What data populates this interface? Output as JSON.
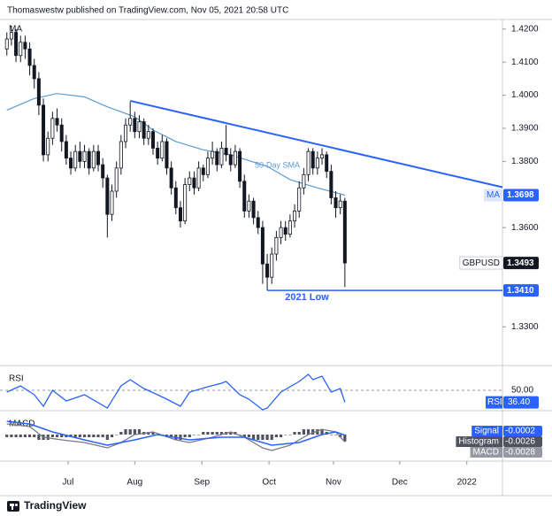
{
  "header": "Thomaswestw published on TradingView.com, Nov 05, 2021 20:58 UTC",
  "footer": "TradingView",
  "chart_data": {
    "type": "candlestick",
    "indicator_label": "MA",
    "xlim": [
      -1.5,
      108.5
    ],
    "ylim": [
      1.3183,
      1.4229
    ],
    "grid": false,
    "xticks": [
      {
        "value": 13.4,
        "label": "Jul"
      },
      {
        "value": 28,
        "label": "Aug"
      },
      {
        "value": 42.7,
        "label": "Sep"
      },
      {
        "value": 57.4,
        "label": "Oct"
      },
      {
        "value": 71.5,
        "label": "Nov"
      },
      {
        "value": 86,
        "label": "Dec"
      },
      {
        "value": 100.7,
        "label": "2022"
      }
    ],
    "yticks": [
      {
        "value": 1.42,
        "label": "1.4200"
      },
      {
        "value": 1.41,
        "label": "1.4100"
      },
      {
        "value": 1.4,
        "label": "1.4000"
      },
      {
        "value": 1.39,
        "label": "1.3900"
      },
      {
        "value": 1.38,
        "label": "1.3800"
      },
      {
        "value": 1.36,
        "label": "1.3600"
      },
      {
        "value": 1.33,
        "label": "1.3300"
      }
    ],
    "up_color": "#ffffff",
    "down_color": "#131722",
    "ohlc": [
      [
        1.414,
        1.419,
        1.412,
        1.417
      ],
      [
        1.417,
        1.421,
        1.415,
        1.419
      ],
      [
        1.419,
        1.42,
        1.41,
        1.412
      ],
      [
        1.412,
        1.418,
        1.41,
        1.416
      ],
      [
        1.416,
        1.418,
        1.411,
        1.414
      ],
      [
        1.414,
        1.416,
        1.406,
        1.409
      ],
      [
        1.409,
        1.411,
        1.402,
        1.405
      ],
      [
        1.405,
        1.407,
        1.394,
        1.397
      ],
      [
        1.397,
        1.399,
        1.38,
        1.382
      ],
      [
        1.382,
        1.389,
        1.38,
        1.387
      ],
      [
        1.387,
        1.395,
        1.385,
        1.393
      ],
      [
        1.393,
        1.396,
        1.389,
        1.391
      ],
      [
        1.391,
        1.393,
        1.383,
        1.386
      ],
      [
        1.386,
        1.388,
        1.379,
        1.381
      ],
      [
        1.381,
        1.383,
        1.376,
        1.378
      ],
      [
        1.378,
        1.385,
        1.377,
        1.383
      ],
      [
        1.383,
        1.386,
        1.378,
        1.38
      ],
      [
        1.38,
        1.385,
        1.378,
        1.383
      ],
      [
        1.383,
        1.384,
        1.376,
        1.378
      ],
      [
        1.378,
        1.385,
        1.377,
        1.383
      ],
      [
        1.383,
        1.385,
        1.377,
        1.379
      ],
      [
        1.379,
        1.381,
        1.372,
        1.375
      ],
      [
        1.375,
        1.376,
        1.357,
        1.364
      ],
      [
        1.364,
        1.373,
        1.362,
        1.371
      ],
      [
        1.371,
        1.38,
        1.369,
        1.378
      ],
      [
        1.378,
        1.388,
        1.376,
        1.386
      ],
      [
        1.386,
        1.393,
        1.384,
        1.391
      ],
      [
        1.391,
        1.398,
        1.389,
        1.393
      ],
      [
        1.393,
        1.395,
        1.387,
        1.389
      ],
      [
        1.389,
        1.394,
        1.387,
        1.392
      ],
      [
        1.392,
        1.393,
        1.385,
        1.387
      ],
      [
        1.387,
        1.391,
        1.385,
        1.389
      ],
      [
        1.389,
        1.39,
        1.382,
        1.384
      ],
      [
        1.384,
        1.386,
        1.379,
        1.381
      ],
      [
        1.381,
        1.388,
        1.38,
        1.386
      ],
      [
        1.386,
        1.387,
        1.376,
        1.378
      ],
      [
        1.378,
        1.38,
        1.37,
        1.372
      ],
      [
        1.372,
        1.374,
        1.364,
        1.366
      ],
      [
        1.366,
        1.368,
        1.36,
        1.362
      ],
      [
        1.362,
        1.375,
        1.361,
        1.373
      ],
      [
        1.373,
        1.377,
        1.371,
        1.375
      ],
      [
        1.375,
        1.377,
        1.37,
        1.372
      ],
      [
        1.372,
        1.38,
        1.371,
        1.378
      ],
      [
        1.378,
        1.379,
        1.374,
        1.376
      ],
      [
        1.376,
        1.383,
        1.375,
        1.381
      ],
      [
        1.381,
        1.386,
        1.379,
        1.383
      ],
      [
        1.383,
        1.384,
        1.377,
        1.379
      ],
      [
        1.379,
        1.386,
        1.378,
        1.384
      ],
      [
        1.384,
        1.391,
        1.38,
        1.382
      ],
      [
        1.382,
        1.384,
        1.377,
        1.379
      ],
      [
        1.379,
        1.385,
        1.378,
        1.383
      ],
      [
        1.383,
        1.384,
        1.372,
        1.374
      ],
      [
        1.374,
        1.376,
        1.363,
        1.365
      ],
      [
        1.365,
        1.37,
        1.363,
        1.368
      ],
      [
        1.368,
        1.369,
        1.361,
        1.363
      ],
      [
        1.363,
        1.365,
        1.358,
        1.36
      ],
      [
        1.36,
        1.362,
        1.343,
        1.349
      ],
      [
        1.349,
        1.352,
        1.341,
        1.345
      ],
      [
        1.345,
        1.354,
        1.343,
        1.352
      ],
      [
        1.352,
        1.359,
        1.35,
        1.357
      ],
      [
        1.357,
        1.362,
        1.355,
        1.36
      ],
      [
        1.36,
        1.362,
        1.356,
        1.358
      ],
      [
        1.358,
        1.364,
        1.357,
        1.362
      ],
      [
        1.362,
        1.367,
        1.36,
        1.365
      ],
      [
        1.365,
        1.374,
        1.363,
        1.372
      ],
      [
        1.372,
        1.378,
        1.37,
        1.376
      ],
      [
        1.376,
        1.384,
        1.374,
        1.383
      ],
      [
        1.383,
        1.384,
        1.376,
        1.378
      ],
      [
        1.378,
        1.383,
        1.376,
        1.381
      ],
      [
        1.381,
        1.384,
        1.379,
        1.382
      ],
      [
        1.382,
        1.383,
        1.375,
        1.377
      ],
      [
        1.377,
        1.379,
        1.367,
        1.369
      ],
      [
        1.369,
        1.371,
        1.363,
        1.366
      ],
      [
        1.366,
        1.37,
        1.364,
        1.368
      ],
      [
        1.368,
        1.369,
        1.342,
        1.3493
      ]
    ],
    "sma": {
      "name": "50-Day SMA",
      "color": "#5b9bd5",
      "x": [
        0,
        6,
        11,
        17,
        22,
        28,
        32,
        37,
        43,
        49,
        57,
        62,
        68,
        74
      ],
      "values": [
        1.3955,
        1.399,
        1.4005,
        1.3995,
        1.3965,
        1.3935,
        1.3895,
        1.386,
        1.3835,
        1.382,
        1.3785,
        1.3745,
        1.372,
        1.3698
      ]
    },
    "trendline": {
      "color": "#2962ff",
      "x": [
        27,
        108.5
      ],
      "values": [
        1.3983,
        1.3722
      ]
    },
    "low_line": {
      "label": "2021 Low",
      "color": "#2962ff",
      "x": [
        57,
        108.5
      ],
      "value": 1.341,
      "value_label": "1.3410"
    },
    "price_labels": [
      {
        "name": "MA",
        "label": "1.3698",
        "color": "#2962ff"
      },
      {
        "name": "GBPUSD",
        "label": "1.3493",
        "color": "#131722"
      }
    ],
    "rsi": {
      "title": "RSI",
      "name": "RSI",
      "color": "#2962ff",
      "ylim": [
        30,
        70
      ],
      "yticks": [
        {
          "value": 50,
          "label": "50.00"
        }
      ],
      "end_label": "36.40",
      "x": [
        0,
        3,
        6,
        8,
        10,
        13,
        17,
        22,
        25,
        27,
        30,
        33,
        35,
        38,
        40,
        44,
        47,
        48,
        51,
        53,
        56,
        57,
        60,
        64,
        66,
        67,
        69,
        71,
        73,
        74
      ],
      "values": [
        48,
        55,
        45,
        32,
        50,
        38,
        45,
        30,
        55,
        62,
        52,
        45,
        40,
        32,
        48,
        54,
        58,
        60,
        45,
        40,
        28,
        30,
        48,
        60,
        68,
        62,
        66,
        48,
        52,
        36.4
      ]
    },
    "macd": {
      "title": "MACD",
      "ylim": [
        -0.009,
        0.007
      ],
      "macd": {
        "name": "MACD",
        "color": "#787b86",
        "end_label": "-0.0028",
        "x": [
          0,
          5,
          8,
          12,
          17,
          22,
          25,
          28,
          32,
          37,
          40,
          45,
          49,
          52,
          56,
          58,
          62,
          66,
          69,
          72,
          74
        ],
        "values": [
          0.004,
          0.003,
          -0.001,
          -0.002,
          -0.003,
          -0.005,
          -0.003,
          0,
          0.001,
          -0.002,
          -0.003,
          -0.001,
          0.001,
          -0.001,
          -0.005,
          -0.006,
          -0.004,
          0,
          0.002,
          0.001,
          -0.0028
        ]
      },
      "signal": {
        "name": "Signal",
        "color": "#2962ff",
        "end_label": "-0.0002",
        "x": [
          0,
          5,
          10,
          17,
          22,
          28,
          33,
          40,
          47,
          52,
          58,
          64,
          69,
          72,
          74
        ],
        "values": [
          0.005,
          0.004,
          0.001,
          -0.002,
          -0.004,
          -0.002,
          0,
          -0.002,
          -0.001,
          -0.001,
          -0.004,
          -0.003,
          0,
          0.001,
          -0.0002
        ]
      },
      "histogram": {
        "name": "Histogram",
        "color": "#50535e",
        "end_label": "-0.0026",
        "values": [
          -0.001,
          -0.001,
          -0.001,
          -0.001,
          -0.001,
          -0.001,
          -0.001,
          -0.002,
          -0.002,
          -0.002,
          -0.001,
          -0.001,
          -0.001,
          -0.001,
          -0.001,
          -0.001,
          -0.001,
          -0.001,
          -0.001,
          -0.001,
          -0.001,
          -0.001,
          -0.002,
          -0.001,
          0,
          0.001,
          0.002,
          0.002,
          0.002,
          0.002,
          0.001,
          0.001,
          0.001,
          0,
          0,
          -0.001,
          -0.001,
          -0.002,
          -0.002,
          -0.001,
          -0.001,
          0,
          0,
          0.001,
          0.001,
          0.001,
          0.001,
          0.001,
          0.001,
          0.001,
          0.001,
          0,
          -0.001,
          -0.001,
          -0.002,
          -0.002,
          -0.002,
          -0.002,
          -0.002,
          -0.001,
          -0.001,
          0,
          0,
          0.001,
          0.001,
          0.002,
          0.002,
          0.002,
          0.002,
          0.002,
          0.001,
          0,
          0,
          -0.001,
          -0.0026
        ]
      }
    }
  }
}
